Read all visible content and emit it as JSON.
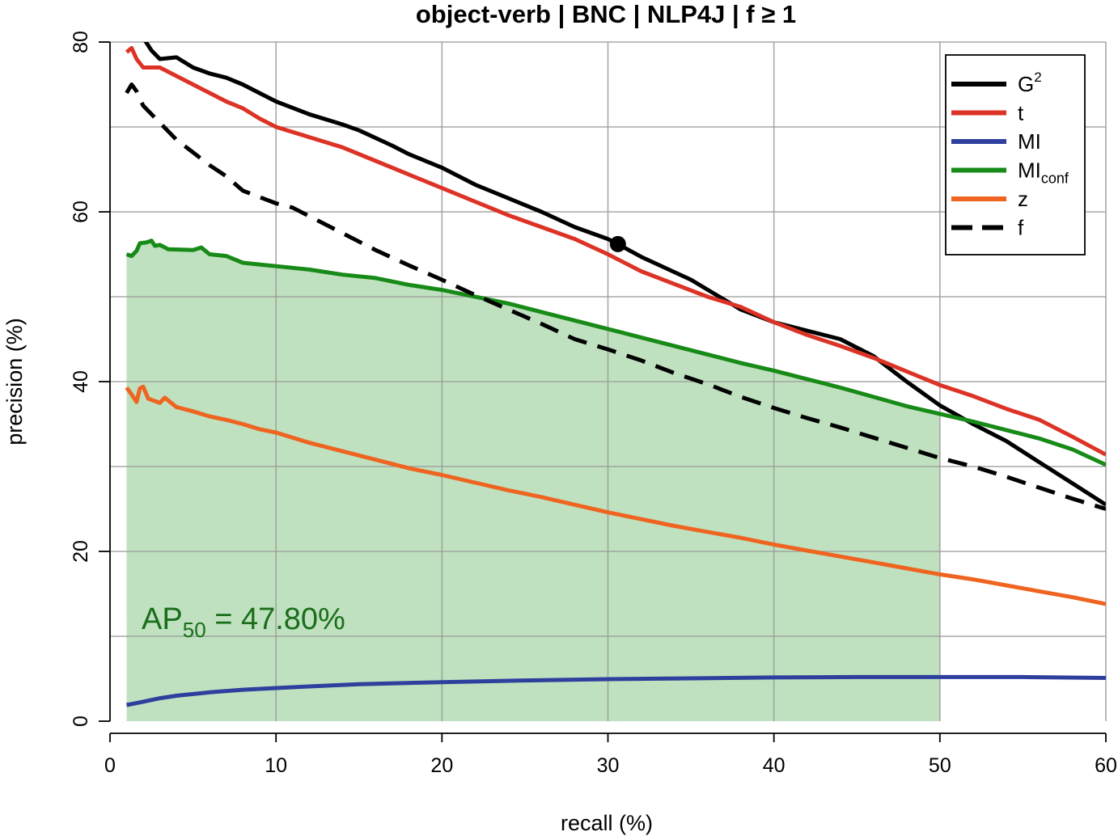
{
  "chart_data": {
    "type": "line",
    "title": "object-verb | BNC | NLP4J | f ≥ 1",
    "xlabel": "recall (%)",
    "ylabel": "precision (%)",
    "xlim": [
      0,
      60
    ],
    "ylim": [
      0,
      80
    ],
    "x_ticks": [
      "0",
      "10",
      "20",
      "30",
      "40",
      "50",
      "60"
    ],
    "y_ticks": [
      "0",
      "20",
      "40",
      "60",
      "80"
    ],
    "grid": true,
    "legend_position": "top-right",
    "legend": [
      {
        "label": "G",
        "sup": "2",
        "sub": "",
        "color": "#000000",
        "dash": false
      },
      {
        "label": "t",
        "sup": "",
        "sub": "",
        "color": "#dc3326",
        "dash": false
      },
      {
        "label": "MI",
        "sup": "",
        "sub": "",
        "color": "#2e3f9e",
        "dash": false
      },
      {
        "label": "MI",
        "sup": "",
        "sub": "conf",
        "color": "#178a17",
        "dash": false
      },
      {
        "label": "z",
        "sup": "",
        "sub": "",
        "color": "#ee6420",
        "dash": false
      },
      {
        "label": "f",
        "sup": "",
        "sub": "",
        "color": "#000000",
        "dash": true
      }
    ],
    "series": [
      {
        "key": "G2",
        "color": "#000000",
        "dash": false,
        "points": [
          [
            1.0,
            82.0
          ],
          [
            2.0,
            80.5
          ],
          [
            2.5,
            79.0
          ],
          [
            3.0,
            78.0
          ],
          [
            4.0,
            78.2
          ],
          [
            5.0,
            77.0
          ],
          [
            6.0,
            76.3
          ],
          [
            7.0,
            75.8
          ],
          [
            8.0,
            75.0
          ],
          [
            9.0,
            74.0
          ],
          [
            10.0,
            73.0
          ],
          [
            12.0,
            71.5
          ],
          [
            14.0,
            70.3
          ],
          [
            15.0,
            69.6
          ],
          [
            17.0,
            67.8
          ],
          [
            18.0,
            66.8
          ],
          [
            20.0,
            65.2
          ],
          [
            22.0,
            63.2
          ],
          [
            24.0,
            61.6
          ],
          [
            26.0,
            60.0
          ],
          [
            28.0,
            58.2
          ],
          [
            30.0,
            56.8
          ],
          [
            30.6,
            56.2
          ],
          [
            32.0,
            54.7
          ],
          [
            35.0,
            52.0
          ],
          [
            38.0,
            48.5
          ],
          [
            40.0,
            47.0
          ],
          [
            42.0,
            46.0
          ],
          [
            44.0,
            45.0
          ],
          [
            46.0,
            43.0
          ],
          [
            48.0,
            40.0
          ],
          [
            50.0,
            37.2
          ],
          [
            52.0,
            35.0
          ],
          [
            54.0,
            33.0
          ],
          [
            56.0,
            30.5
          ],
          [
            58.0,
            28.0
          ],
          [
            60.0,
            25.5
          ]
        ]
      },
      {
        "key": "t",
        "color": "#dc3326",
        "dash": false,
        "points": [
          [
            1.0,
            78.8
          ],
          [
            1.3,
            79.3
          ],
          [
            1.6,
            78.0
          ],
          [
            2.0,
            77.0
          ],
          [
            3.0,
            77.0
          ],
          [
            4.0,
            76.0
          ],
          [
            5.0,
            75.0
          ],
          [
            6.0,
            74.0
          ],
          [
            7.0,
            73.0
          ],
          [
            8.0,
            72.2
          ],
          [
            9.0,
            71.0
          ],
          [
            10.0,
            70.0
          ],
          [
            12.0,
            68.8
          ],
          [
            14.0,
            67.6
          ],
          [
            16.0,
            66.0
          ],
          [
            18.0,
            64.4
          ],
          [
            20.0,
            62.8
          ],
          [
            22.0,
            61.2
          ],
          [
            24.0,
            59.6
          ],
          [
            26.0,
            58.2
          ],
          [
            28.0,
            56.8
          ],
          [
            30.0,
            55.0
          ],
          [
            32.0,
            53.0
          ],
          [
            34.0,
            51.5
          ],
          [
            36.0,
            50.0
          ],
          [
            38.0,
            48.8
          ],
          [
            40.0,
            47.0
          ],
          [
            42.0,
            45.5
          ],
          [
            44.0,
            44.2
          ],
          [
            46.0,
            42.8
          ],
          [
            48.0,
            41.2
          ],
          [
            50.0,
            39.6
          ],
          [
            52.0,
            38.3
          ],
          [
            54.0,
            36.8
          ],
          [
            56.0,
            35.5
          ],
          [
            58.0,
            33.5
          ],
          [
            60.0,
            31.4
          ]
        ]
      },
      {
        "key": "MI",
        "color": "#2e3f9e",
        "dash": false,
        "points": [
          [
            1.0,
            1.9
          ],
          [
            2.0,
            2.3
          ],
          [
            3.0,
            2.7
          ],
          [
            4.0,
            3.0
          ],
          [
            6.0,
            3.4
          ],
          [
            8.0,
            3.7
          ],
          [
            10.0,
            3.9
          ],
          [
            12.0,
            4.1
          ],
          [
            15.0,
            4.35
          ],
          [
            20.0,
            4.6
          ],
          [
            25.0,
            4.8
          ],
          [
            30.0,
            4.95
          ],
          [
            35.0,
            5.05
          ],
          [
            40.0,
            5.15
          ],
          [
            45.0,
            5.2
          ],
          [
            50.0,
            5.2
          ],
          [
            55.0,
            5.2
          ],
          [
            60.0,
            5.1
          ]
        ]
      },
      {
        "key": "MIconf",
        "color": "#178a17",
        "dash": false,
        "points": [
          [
            1.0,
            55.0
          ],
          [
            1.3,
            54.8
          ],
          [
            1.6,
            55.4
          ],
          [
            1.8,
            56.3
          ],
          [
            2.2,
            56.4
          ],
          [
            2.5,
            56.6
          ],
          [
            2.7,
            56.0
          ],
          [
            3.0,
            56.1
          ],
          [
            3.5,
            55.6
          ],
          [
            5.0,
            55.5
          ],
          [
            5.5,
            55.8
          ],
          [
            6.0,
            55.0
          ],
          [
            7.0,
            54.8
          ],
          [
            8.0,
            54.0
          ],
          [
            9.0,
            53.8
          ],
          [
            10.0,
            53.6
          ],
          [
            12.0,
            53.2
          ],
          [
            14.0,
            52.6
          ],
          [
            16.0,
            52.2
          ],
          [
            18.0,
            51.4
          ],
          [
            20.0,
            50.8
          ],
          [
            22.0,
            50.0
          ],
          [
            24.0,
            49.2
          ],
          [
            26.0,
            48.2
          ],
          [
            28.0,
            47.2
          ],
          [
            30.0,
            46.2
          ],
          [
            32.0,
            45.2
          ],
          [
            34.0,
            44.2
          ],
          [
            36.0,
            43.2
          ],
          [
            38.0,
            42.2
          ],
          [
            40.0,
            41.3
          ],
          [
            42.0,
            40.3
          ],
          [
            44.0,
            39.3
          ],
          [
            46.0,
            38.2
          ],
          [
            48.0,
            37.1
          ],
          [
            50.0,
            36.2
          ],
          [
            52.0,
            35.3
          ],
          [
            54.0,
            34.3
          ],
          [
            56.0,
            33.3
          ],
          [
            58.0,
            32.0
          ],
          [
            60.0,
            30.2
          ]
        ]
      },
      {
        "key": "z",
        "color": "#ee6420",
        "dash": false,
        "points": [
          [
            1.0,
            39.3
          ],
          [
            1.3,
            38.5
          ],
          [
            1.6,
            37.6
          ],
          [
            1.8,
            39.2
          ],
          [
            2.0,
            39.4
          ],
          [
            2.3,
            38.0
          ],
          [
            3.0,
            37.5
          ],
          [
            3.3,
            38.1
          ],
          [
            4.0,
            37.0
          ],
          [
            5.0,
            36.5
          ],
          [
            6.0,
            35.9
          ],
          [
            7.0,
            35.5
          ],
          [
            8.0,
            35.0
          ],
          [
            9.0,
            34.4
          ],
          [
            10.0,
            34.0
          ],
          [
            12.0,
            32.8
          ],
          [
            14.0,
            31.8
          ],
          [
            16.0,
            30.8
          ],
          [
            18.0,
            29.8
          ],
          [
            20.0,
            29.0
          ],
          [
            22.0,
            28.1
          ],
          [
            24.0,
            27.2
          ],
          [
            26.0,
            26.4
          ],
          [
            28.0,
            25.5
          ],
          [
            30.0,
            24.6
          ],
          [
            32.0,
            23.8
          ],
          [
            34.0,
            23.0
          ],
          [
            36.0,
            22.3
          ],
          [
            38.0,
            21.6
          ],
          [
            40.0,
            20.8
          ],
          [
            42.0,
            20.1
          ],
          [
            44.0,
            19.4
          ],
          [
            46.0,
            18.7
          ],
          [
            48.0,
            18.0
          ],
          [
            50.0,
            17.3
          ],
          [
            52.0,
            16.7
          ],
          [
            54.0,
            16.0
          ],
          [
            56.0,
            15.3
          ],
          [
            58.0,
            14.6
          ],
          [
            60.0,
            13.8
          ]
        ]
      },
      {
        "key": "f",
        "color": "#000000",
        "dash": true,
        "points": [
          [
            1.0,
            74.0
          ],
          [
            1.3,
            75.0
          ],
          [
            1.6,
            74.2
          ],
          [
            2.0,
            72.5
          ],
          [
            3.0,
            70.5
          ],
          [
            4.0,
            68.5
          ],
          [
            5.0,
            67.0
          ],
          [
            6.0,
            65.5
          ],
          [
            7.0,
            64.2
          ],
          [
            8.0,
            62.5
          ],
          [
            10.0,
            61.0
          ],
          [
            11.0,
            60.5
          ],
          [
            12.0,
            59.5
          ],
          [
            14.0,
            57.5
          ],
          [
            16.0,
            55.5
          ],
          [
            18.0,
            53.7
          ],
          [
            20.0,
            52.0
          ],
          [
            22.0,
            50.2
          ],
          [
            24.0,
            48.5
          ],
          [
            26.0,
            46.8
          ],
          [
            28.0,
            45.0
          ],
          [
            30.0,
            43.8
          ],
          [
            32.0,
            42.5
          ],
          [
            34.0,
            41.0
          ],
          [
            36.0,
            39.7
          ],
          [
            38.0,
            38.2
          ],
          [
            40.0,
            36.9
          ],
          [
            42.0,
            35.7
          ],
          [
            44.0,
            34.6
          ],
          [
            46.0,
            33.4
          ],
          [
            48.0,
            32.2
          ],
          [
            50.0,
            31.0
          ],
          [
            52.0,
            30.0
          ],
          [
            54.0,
            28.8
          ],
          [
            56.0,
            27.5
          ],
          [
            58.0,
            26.2
          ],
          [
            60.0,
            25.0
          ]
        ]
      }
    ],
    "shaded_area": {
      "series": "MIconf",
      "x_from": 1,
      "x_to": 50,
      "color": "#bfe1bf"
    },
    "marker": {
      "series": "G2",
      "x": 30.6,
      "y": 56.2
    },
    "annotation": {
      "text_main": "AP",
      "text_sub": "50",
      "text_rest": " = 47.80%",
      "color": "#1a6e1a",
      "x": 2,
      "y": 12
    }
  }
}
